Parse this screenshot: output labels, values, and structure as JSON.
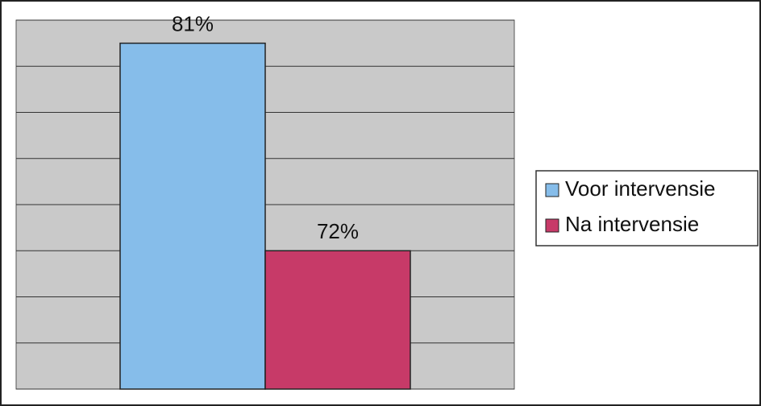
{
  "chart_data": {
    "type": "bar",
    "categories": [
      null
    ],
    "series": [
      {
        "name": "Voor intervensie",
        "color": "#86bdea",
        "values": [
          81
        ],
        "value_labels": [
          "81%"
        ]
      },
      {
        "name": "Na intervensie",
        "color": "#c73a68",
        "values": [
          72
        ],
        "value_labels": [
          "72%"
        ]
      }
    ],
    "ylim": [
      66,
      82
    ],
    "yticks": [
      66,
      68,
      70,
      72,
      74,
      76,
      78,
      80,
      82
    ],
    "grid": true,
    "legend": "right"
  }
}
